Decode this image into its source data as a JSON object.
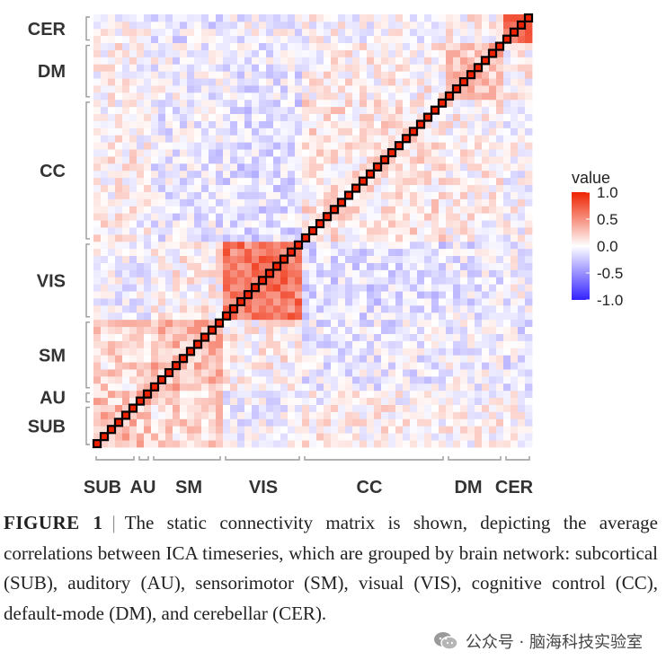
{
  "chart_data": {
    "type": "heatmap",
    "networks_bottom_to_top": [
      {
        "name": "SUB",
        "size": 6
      },
      {
        "name": "AU",
        "size": 2
      },
      {
        "name": "SM",
        "size": 10
      },
      {
        "name": "VIS",
        "size": 11
      },
      {
        "name": "CC",
        "size": 20
      },
      {
        "name": "DM",
        "size": 8
      },
      {
        "name": "CER",
        "size": 4
      }
    ],
    "x_labels": [
      "SUB",
      "AU",
      "SM",
      "VIS",
      "CC",
      "DM",
      "CER"
    ],
    "y_labels": [
      "CER",
      "DM",
      "CC",
      "VIS",
      "SM",
      "AU",
      "SUB"
    ],
    "value_range": [
      -1,
      1
    ],
    "diagonal_value": 1.0,
    "block_mean_correlation": {
      "SUB": {
        "SUB": 0.35,
        "AU": 0.25,
        "SM": 0.15,
        "VIS": -0.05,
        "CC": 0.05,
        "DM": 0.05,
        "CER": 0.05
      },
      "AU": {
        "SUB": 0.25,
        "AU": 0.4,
        "SM": 0.2,
        "VIS": -0.05,
        "CC": 0.0,
        "DM": 0.0,
        "CER": -0.05
      },
      "SM": {
        "SUB": 0.15,
        "AU": 0.2,
        "SM": 0.3,
        "VIS": 0.05,
        "CC": -0.1,
        "DM": -0.05,
        "CER": -0.1
      },
      "VIS": {
        "SUB": -0.05,
        "AU": -0.05,
        "SM": 0.05,
        "VIS": 0.6,
        "CC": -0.15,
        "DM": -0.1,
        "CER": -0.05
      },
      "CC": {
        "SUB": 0.05,
        "AU": 0.0,
        "SM": -0.1,
        "VIS": -0.15,
        "CC": 0.1,
        "DM": 0.05,
        "CER": 0.0
      },
      "DM": {
        "SUB": 0.05,
        "AU": 0.0,
        "SM": -0.05,
        "VIS": -0.1,
        "CC": 0.05,
        "DM": 0.3,
        "CER": 0.05
      },
      "CER": {
        "SUB": 0.05,
        "AU": -0.05,
        "SM": -0.1,
        "VIS": -0.05,
        "CC": 0.0,
        "DM": 0.05,
        "CER": 0.6
      }
    },
    "legend": {
      "title": "value",
      "ticks": [
        "1.0",
        "0.5",
        "0.0",
        "-0.5",
        "-1.0"
      ],
      "colors": {
        "high": "#ee2200",
        "mid": "#ffffff",
        "low": "#3322ff"
      },
      "placement": "right"
    },
    "grid": false
  },
  "caption": {
    "label": "FIGURE 1",
    "separator": "|",
    "text": "The static connectivity matrix is shown, depicting the average correlations between ICA timeseries, which are grouped by brain network: subcortical (SUB), auditory (AU), sensorimotor (SM), visual (VIS), cognitive control (CC), default-mode (DM), and cerebellar (CER)."
  },
  "watermark": {
    "icon": "wechat-icon",
    "text": "公众号 · 脑海科技实验室"
  }
}
